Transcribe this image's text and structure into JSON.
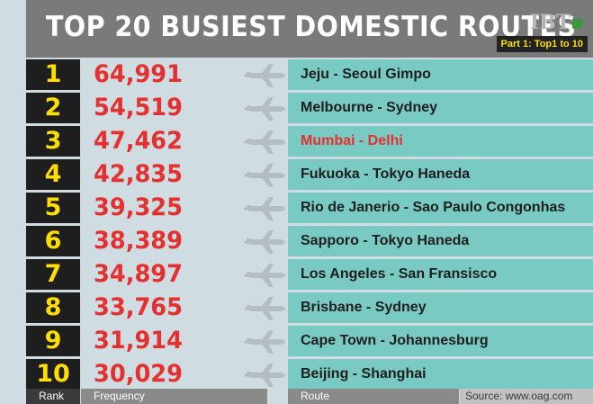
{
  "header": {
    "title": "TOP 20 BUSIEST DOMESTIC ROUTES",
    "brand": "IBT",
    "part_badge": "Part 1: Top1 to 10"
  },
  "icons": {
    "row_icon": "airplane-icon"
  },
  "colors": {
    "rank_bg": "#1e1e1e",
    "rank_text": "#ffde00",
    "frequency_text": "#e53030",
    "route_bg": "#79cac3",
    "highlight_route_text": "#e53030"
  },
  "chart_data": {
    "type": "table",
    "title": "TOP 20 BUSIEST DOMESTIC ROUTES",
    "subtitle": "Part 1: Top1 to 10",
    "columns": [
      "Rank",
      "Frequency",
      "Route"
    ],
    "rows": [
      {
        "rank": "1",
        "frequency": "64,991",
        "route": "Jeju - Seoul Gimpo",
        "highlight": false
      },
      {
        "rank": "2",
        "frequency": "54,519",
        "route": "Melbourne - Sydney",
        "highlight": false
      },
      {
        "rank": "3",
        "frequency": "47,462",
        "route": "Mumbai - Delhi",
        "highlight": true
      },
      {
        "rank": "4",
        "frequency": "42,835",
        "route": "Fukuoka - Tokyo Haneda",
        "highlight": false
      },
      {
        "rank": "5",
        "frequency": "39,325",
        "route": "Rio de Janerio - Sao Paulo Congonhas",
        "highlight": false
      },
      {
        "rank": "6",
        "frequency": "38,389",
        "route": "Sapporo - Tokyo Haneda",
        "highlight": false
      },
      {
        "rank": "7",
        "frequency": "34,897",
        "route": "Los Angeles - San Fransisco",
        "highlight": false
      },
      {
        "rank": "8",
        "frequency": "33,765",
        "route": "Brisbane - Sydney",
        "highlight": false
      },
      {
        "rank": "9",
        "frequency": "31,914",
        "route": "Cape Town - Johannesburg",
        "highlight": false
      },
      {
        "rank": "10",
        "frequency": "30,029",
        "route": "Beijing - Shanghai",
        "highlight": false
      }
    ],
    "source": "Source: www.oag.com"
  }
}
